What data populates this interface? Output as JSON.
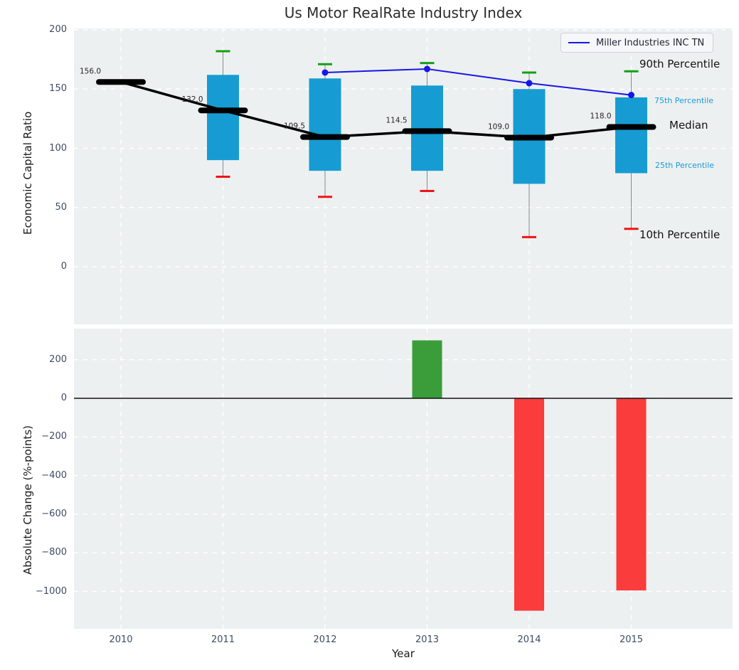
{
  "figure": {
    "title": "Us Motor RealRate Industry Index",
    "xlabel": "Year"
  },
  "legend": {
    "label": "Miller Industries INC TN",
    "line_color": "#1717e6"
  },
  "annotations": {
    "p90": "90th Percentile",
    "p75": "75th Percentile",
    "median": "Median",
    "p25": "25th Percentile",
    "p10": "10th Percentile"
  },
  "colors": {
    "axes_bg": "#edf0f1",
    "grid": "#ffffff",
    "tick": "#3d4c63",
    "box_fill": "#169cd2",
    "median": "#000000",
    "whisker": "#888888",
    "cap_high": "#12a012",
    "cap_low": "#ee1414",
    "company_line": "#1717e6",
    "bar_positive": "#3a9d3a",
    "bar_negative": "#fa3c3c",
    "pct_blue": "#199cd6"
  },
  "chart_data": [
    {
      "type": "box",
      "title": "Us Motor RealRate Industry Index",
      "ylabel": "Economic Capital Ratio",
      "xlabel": "Year",
      "x": [
        2010,
        2011,
        2012,
        2013,
        2014,
        2015
      ],
      "yticks": [
        200,
        150,
        100,
        50,
        0
      ],
      "ylim": [
        -49,
        201
      ],
      "xlim": [
        2009.54,
        2016.0
      ],
      "grid": true,
      "legend_position": "upper right",
      "boxes": [
        {
          "year": 2010,
          "median": 156.0,
          "q1": null,
          "q3": null,
          "whisker_low": null,
          "whisker_high": null
        },
        {
          "year": 2011,
          "median": 132.0,
          "q1": 90,
          "q3": 162,
          "whisker_low": 76,
          "whisker_high": 182
        },
        {
          "year": 2012,
          "median": 109.5,
          "q1": 81,
          "q3": 159,
          "whisker_low": 59,
          "whisker_high": 171
        },
        {
          "year": 2013,
          "median": 114.5,
          "q1": 81,
          "q3": 153,
          "whisker_low": 64,
          "whisker_high": 172
        },
        {
          "year": 2014,
          "median": 109.0,
          "q1": 70,
          "q3": 150,
          "whisker_low": 25,
          "whisker_high": 164
        },
        {
          "year": 2015,
          "median": 118.0,
          "q1": 79,
          "q3": 143,
          "whisker_low": 32,
          "whisker_high": 165
        }
      ],
      "median_labels": [
        "156.0",
        "132.0",
        "109.5",
        "114.5",
        "109.0",
        "118.0"
      ],
      "series": [
        {
          "name": "Miller Industries INC TN",
          "x": [
            2012,
            2013,
            2014,
            2015
          ],
          "values": [
            164,
            167,
            155,
            145
          ],
          "color": "#1717e6",
          "marker": "circle"
        }
      ]
    },
    {
      "type": "bar",
      "ylabel": "Absolute Change (%-points)",
      "xlabel": "Year",
      "x": [
        2010,
        2011,
        2012,
        2013,
        2014,
        2015
      ],
      "yticks": [
        200,
        0,
        -200,
        -400,
        -600,
        -800,
        -1000
      ],
      "ylim": [
        -1193,
        361
      ],
      "grid": true,
      "zero_line": true,
      "bars": [
        {
          "year": 2013,
          "value": 300,
          "color": "#3a9d3a"
        },
        {
          "year": 2014,
          "value": -1100,
          "color": "#fa3c3c"
        },
        {
          "year": 2015,
          "value": -995,
          "color": "#fa3c3c"
        }
      ]
    }
  ]
}
